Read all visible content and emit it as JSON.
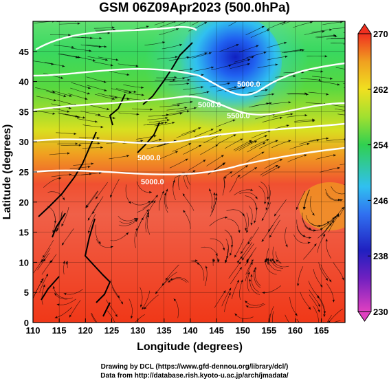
{
  "title": "GSM 06Z09Apr2023 (500.0hPa)",
  "x_axis": {
    "label": "Longitude (degrees)",
    "ticks": [
      "110",
      "115",
      "120",
      "125",
      "130",
      "135",
      "140",
      "145",
      "150",
      "155",
      "160",
      "165"
    ]
  },
  "y_axis": {
    "label": "Latitude (degrees)",
    "ticks": [
      "0",
      "5",
      "10",
      "15",
      "20",
      "25",
      "30",
      "35",
      "40",
      "45"
    ]
  },
  "colorbar": {
    "ticks": [
      "230",
      "238",
      "246",
      "254",
      "262",
      "270"
    ],
    "range": [
      230,
      270
    ],
    "colors": [
      "#e040c0",
      "#2020c0",
      "#3070f0",
      "#30c0f0",
      "#30d050",
      "#a0e030",
      "#f0e020",
      "#f0a020",
      "#f03020"
    ]
  },
  "contours": {
    "labels": [
      "5000.0",
      "5000.0",
      "5000.0",
      "5500.0",
      "5000.0"
    ]
  },
  "credits": {
    "line1": "Drawing by DCL (https://www.gfd-dennou.org/library/dcl/)",
    "line2": "Data from http://database.rish.kyoto-u.ac.jp/arch/jmadata/"
  }
}
